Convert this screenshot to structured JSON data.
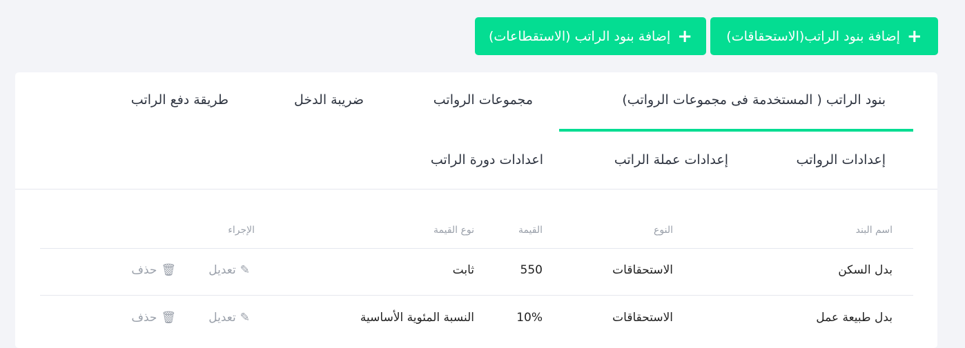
{
  "buttons": {
    "add_earnings": "إضافة بنود الراتب(الاستحقاقات)",
    "add_deductions": "إضافة بنود الراتب (الاستقطاعات)"
  },
  "tabs": [
    "بنود الراتب ( المستخدمة فى مجموعات الرواتب)",
    "مجموعات الرواتب",
    "ضريبة الدخل",
    "طريقة دفع الراتب",
    "إعدادات الرواتب",
    "إعدادات عملة الراتب",
    "اعدادات دورة الراتب"
  ],
  "active_tab": 0,
  "accent": "#04dd92",
  "table": {
    "headers": [
      "اسم البند",
      "النوع",
      "القيمة",
      "نوع القيمة",
      "الإجراء"
    ],
    "rows": [
      [
        "بدل السكن",
        "الاستحقاقات",
        "550",
        "ثابت"
      ],
      [
        "بدل طبيعة عمل",
        "الاستحقاقات",
        "10%",
        "النسبة المئوية الأساسية"
      ]
    ],
    "edit_label": "تعديل",
    "delete_label": "حذف"
  }
}
